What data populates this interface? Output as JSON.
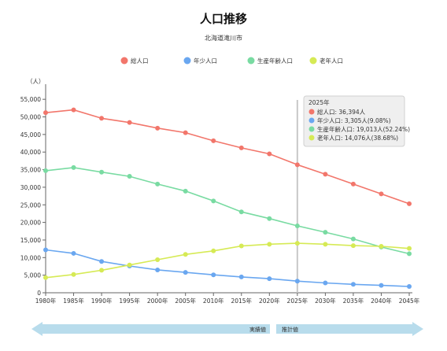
{
  "title": "人口推移",
  "subtitle": "北海道滝川市",
  "colors": {
    "total": "#f2766b",
    "young": "#6aa7f0",
    "working": "#79dba2",
    "elderly": "#d6ea55",
    "arrow": "#b8dcec",
    "divider": "#c8c8c8",
    "tooltip_bg": "#eeeeee"
  },
  "tooltip": {
    "year": "2025年",
    "lines": [
      "総人口: 36,394人",
      "年少人口: 3,305人(9.08%)",
      "生産年齢人口: 19,013人(52.24%)",
      "老年人口: 14,076人(38.68%)"
    ]
  },
  "periods": {
    "actual": "実績値",
    "projected": "推計値"
  },
  "chart_data": {
    "type": "line",
    "title": "人口推移",
    "subtitle": "北海道滝川市",
    "ylabel": "（人）",
    "xlabel": "",
    "ylim": [
      0,
      57500
    ],
    "yticks": [
      0,
      5000,
      10000,
      15000,
      20000,
      25000,
      30000,
      35000,
      40000,
      45000,
      50000,
      55000
    ],
    "ytick_labels": [
      "0",
      "5,000",
      "10,000",
      "15,000",
      "20,000",
      "25,000",
      "30,000",
      "35,000",
      "40,000",
      "45,000",
      "50,000",
      "55,000"
    ],
    "categories": [
      "1980年",
      "1985年",
      "1990年",
      "1995年",
      "2000年",
      "2005年",
      "2010年",
      "2015年",
      "2020年",
      "2025年",
      "2030年",
      "2035年",
      "2040年",
      "2045年"
    ],
    "divider_category": "2025年",
    "legend_position": "top",
    "grid": false,
    "series": [
      {
        "name": "総人口",
        "color": "#f2766b",
        "values": [
          51200,
          52000,
          49600,
          48400,
          46800,
          45500,
          43200,
          41200,
          39500,
          36394,
          33700,
          30900,
          28100,
          25300
        ]
      },
      {
        "name": "年少人口",
        "color": "#6aa7f0",
        "values": [
          12200,
          11200,
          8900,
          7600,
          6500,
          5800,
          5100,
          4500,
          4000,
          3305,
          2800,
          2400,
          2100,
          1800
        ]
      },
      {
        "name": "生産年齢人口",
        "color": "#79dba2",
        "values": [
          34700,
          35600,
          34300,
          33100,
          30900,
          28900,
          26100,
          23000,
          21100,
          19013,
          17200,
          15300,
          13000,
          11100
        ]
      },
      {
        "name": "老年人口",
        "color": "#d6ea55",
        "values": [
          4300,
          5200,
          6400,
          7900,
          9400,
          10900,
          11900,
          13300,
          13800,
          14076,
          13800,
          13400,
          13200,
          12600
        ]
      }
    ]
  }
}
